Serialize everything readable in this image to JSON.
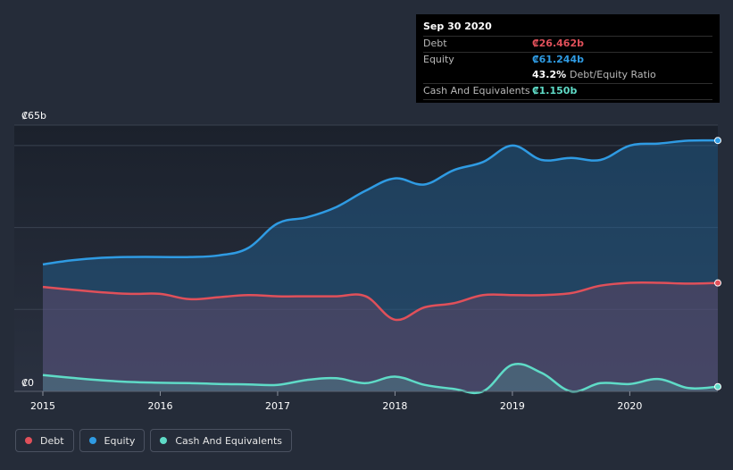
{
  "tooltip": {
    "date": "Sep 30 2020",
    "debt_label": "Debt",
    "debt_value": "₡26.462b",
    "equity_label": "Equity",
    "equity_value": "₡61.244b",
    "ratio_value": "43.2%",
    "ratio_label": "Debt/Equity Ratio",
    "cash_label": "Cash And Equivalents",
    "cash_value": "₡1.150b"
  },
  "legend": {
    "debt": "Debt",
    "equity": "Equity",
    "cash": "Cash And Equivalents"
  },
  "colors": {
    "debt": "#e0505a",
    "equity": "#2f9be3",
    "cash": "#5fdbc7",
    "background": "#252c39"
  },
  "chart_data": {
    "type": "area",
    "title": "",
    "xlabel": "",
    "ylabel": "",
    "ylim": [
      0,
      65
    ],
    "y_ticks": [
      "₡65b",
      "₡0"
    ],
    "x_ticks": [
      "2015",
      "2016",
      "2017",
      "2018",
      "2019",
      "2020"
    ],
    "x_tick_values": [
      2015,
      2016,
      2017,
      2018,
      2019,
      2020
    ],
    "xlim": [
      2015.0,
      2020.75
    ],
    "series": [
      {
        "name": "Equity",
        "x": [
          2015.0,
          2015.25,
          2015.5,
          2015.75,
          2016.0,
          2016.25,
          2016.5,
          2016.75,
          2017.0,
          2017.25,
          2017.5,
          2017.75,
          2018.0,
          2018.25,
          2018.5,
          2018.75,
          2019.0,
          2019.25,
          2019.5,
          2019.75,
          2020.0,
          2020.25,
          2020.5,
          2020.75
        ],
        "values": [
          31.0,
          32.0,
          32.6,
          32.8,
          32.8,
          32.8,
          33.2,
          35.0,
          41.0,
          42.5,
          45.0,
          49.0,
          52.0,
          50.5,
          54.0,
          56.0,
          60.0,
          56.5,
          57.0,
          56.5,
          60.0,
          60.5,
          61.2,
          61.244
        ]
      },
      {
        "name": "Debt",
        "x": [
          2015.0,
          2015.25,
          2015.5,
          2015.75,
          2016.0,
          2016.25,
          2016.5,
          2016.75,
          2017.0,
          2017.25,
          2017.5,
          2017.75,
          2018.0,
          2018.25,
          2018.5,
          2018.75,
          2019.0,
          2019.25,
          2019.5,
          2019.75,
          2020.0,
          2020.25,
          2020.5,
          2020.75
        ],
        "values": [
          25.5,
          24.8,
          24.2,
          23.8,
          23.8,
          22.5,
          23.0,
          23.5,
          23.2,
          23.2,
          23.2,
          23.2,
          17.5,
          20.5,
          21.5,
          23.5,
          23.5,
          23.5,
          24.0,
          25.8,
          26.5,
          26.5,
          26.3,
          26.462
        ]
      },
      {
        "name": "Cash And Equivalents",
        "x": [
          2015.0,
          2015.25,
          2015.5,
          2015.75,
          2016.0,
          2016.25,
          2016.5,
          2016.75,
          2017.0,
          2017.25,
          2017.5,
          2017.75,
          2018.0,
          2018.25,
          2018.5,
          2018.75,
          2019.0,
          2019.25,
          2019.5,
          2019.75,
          2020.0,
          2020.25,
          2020.5,
          2020.75
        ],
        "values": [
          4.0,
          3.3,
          2.7,
          2.3,
          2.1,
          2.0,
          1.8,
          1.7,
          1.6,
          2.8,
          3.2,
          2.0,
          3.6,
          1.6,
          0.6,
          0.0,
          6.5,
          4.5,
          0.0,
          2.0,
          1.8,
          3.0,
          0.8,
          1.15
        ]
      }
    ]
  }
}
